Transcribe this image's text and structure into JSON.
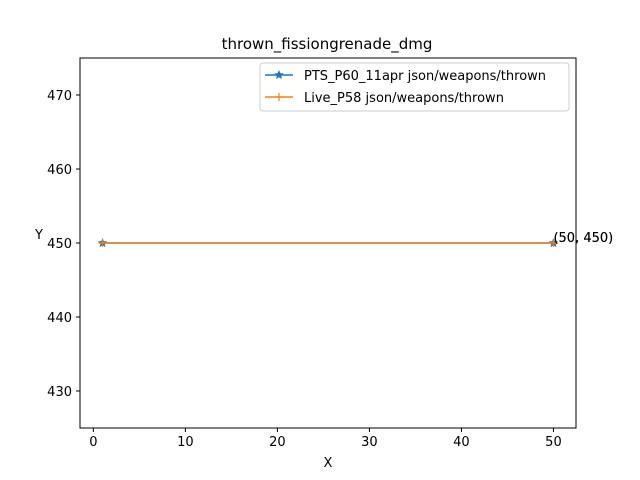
{
  "chart_data": {
    "type": "line",
    "title": "thrown_fissiongrenade_dmg",
    "xlabel": "X",
    "ylabel": "Y",
    "xlim": [
      -1.45,
      52.45
    ],
    "ylim": [
      425,
      475
    ],
    "xticks": [
      0,
      10,
      20,
      30,
      40,
      50
    ],
    "yticks": [
      430,
      440,
      450,
      460,
      470
    ],
    "grid": false,
    "legend_position": "top-right",
    "series": [
      {
        "name": "PTS_P60_11apr json/weapons/thrown",
        "color": "#1f77b4",
        "marker": "star",
        "x": [
          1,
          50
        ],
        "y": [
          450,
          450
        ]
      },
      {
        "name": "Live_P58 json/weapons/thrown",
        "color": "#ff7f0e",
        "marker": "plus",
        "x": [
          1,
          50
        ],
        "y": [
          450,
          450
        ]
      }
    ],
    "annotations": [
      {
        "text": "(50, 450)",
        "x": 50,
        "y": 450
      }
    ]
  }
}
